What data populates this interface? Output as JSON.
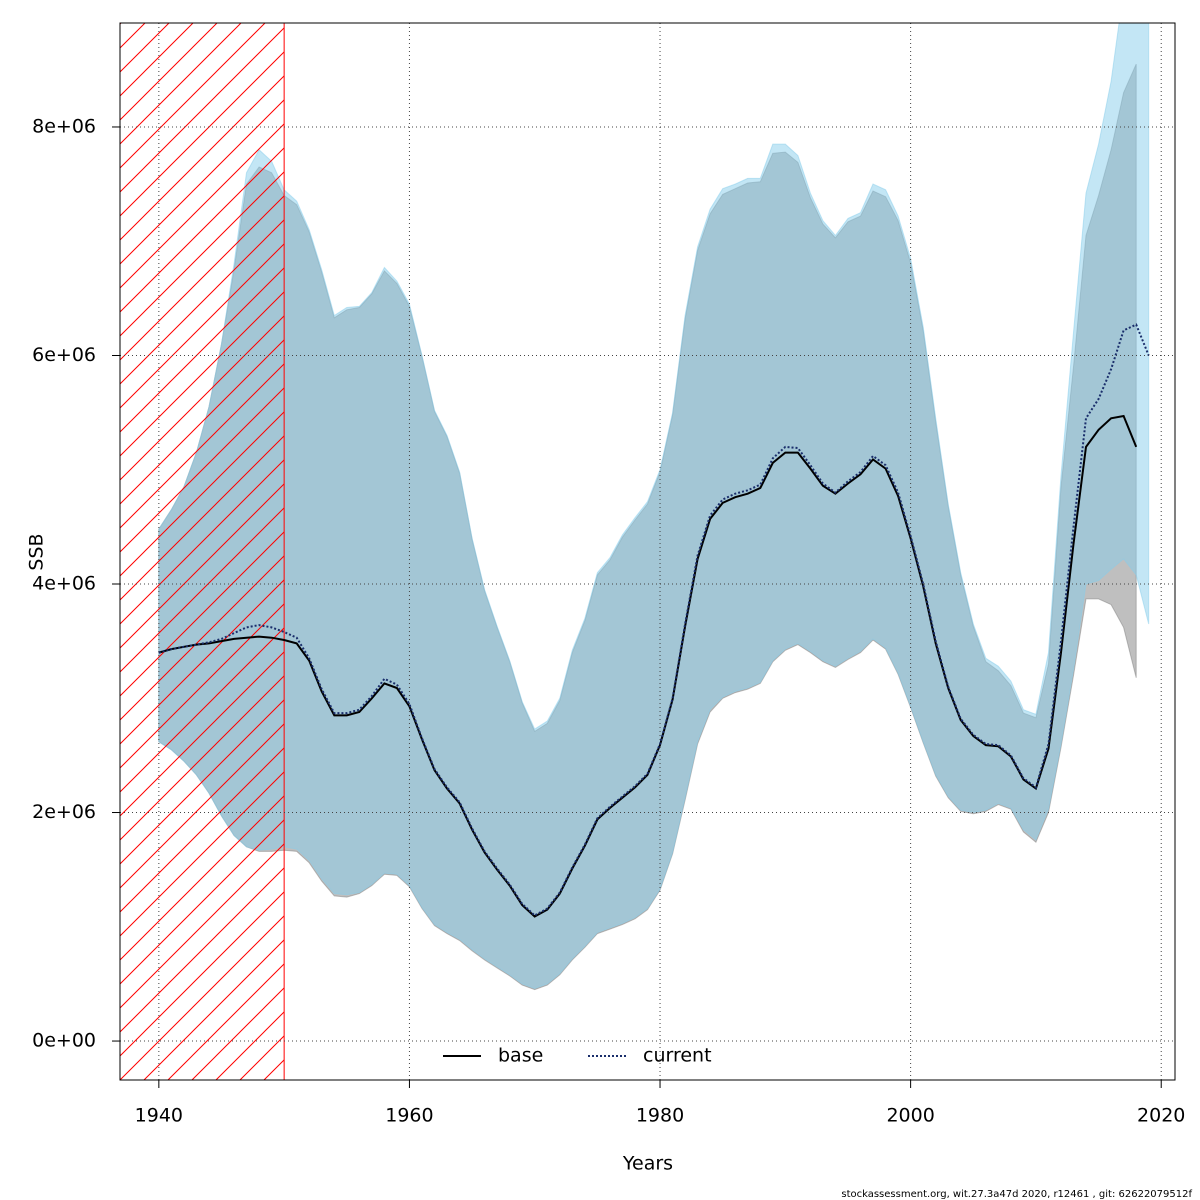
{
  "chart_data": {
    "type": "line",
    "xlabel": "Years",
    "ylabel": "SSB",
    "footer": "stockassessment.org, wit.27.3a47d   2020, r12461 , git: 62622079512f",
    "xlim": [
      1936.9,
      2021.1
    ],
    "ylim": [
      -341000,
      8910000
    ],
    "xticks": [
      1940,
      1960,
      1980,
      2000,
      2020
    ],
    "yticks": [
      {
        "value": 0,
        "label": "0e+00"
      },
      {
        "value": 2000000,
        "label": "2e+06"
      },
      {
        "value": 4000000,
        "label": "4e+06"
      },
      {
        "value": 6000000,
        "label": "6e+06"
      },
      {
        "value": 8000000,
        "label": "8e+06"
      }
    ],
    "grid": true,
    "legend": "bottom",
    "shaded_region": {
      "x": [
        1936.9,
        1950
      ],
      "color": "#ff0000"
    },
    "x": [
      1940,
      1941,
      1942,
      1943,
      1944,
      1945,
      1946,
      1947,
      1948,
      1949,
      1950,
      1951,
      1952,
      1953,
      1954,
      1955,
      1956,
      1957,
      1958,
      1959,
      1960,
      1961,
      1962,
      1963,
      1964,
      1965,
      1966,
      1967,
      1968,
      1969,
      1970,
      1971,
      1972,
      1973,
      1974,
      1975,
      1976,
      1977,
      1978,
      1979,
      1980,
      1981,
      1982,
      1983,
      1984,
      1985,
      1986,
      1987,
      1988,
      1989,
      1990,
      1991,
      1992,
      1993,
      1994,
      1995,
      1996,
      1997,
      1998,
      1999,
      2000,
      2001,
      2002,
      2003,
      2004,
      2005,
      2006,
      2007,
      2008,
      2009,
      2010,
      2011,
      2012,
      2013,
      2014,
      2015,
      2016,
      2017,
      2018,
      2019
    ],
    "series": [
      {
        "name": "base",
        "color": "#000000",
        "band_color": "#808080",
        "dash": "solid",
        "values": [
          3400000,
          3430000,
          3450000,
          3470000,
          3480000,
          3500000,
          3520000,
          3530000,
          3540000,
          3530000,
          3510000,
          3480000,
          3330000,
          3060000,
          2850000,
          2850000,
          2880000,
          3000000,
          3130000,
          3090000,
          2930000,
          2640000,
          2370000,
          2210000,
          2080000,
          1850000,
          1650000,
          1500000,
          1360000,
          1190000,
          1090000,
          1150000,
          1290000,
          1510000,
          1710000,
          1940000,
          2040000,
          2130000,
          2220000,
          2330000,
          2590000,
          2990000,
          3630000,
          4220000,
          4570000,
          4710000,
          4760000,
          4790000,
          4840000,
          5060000,
          5150000,
          5150000,
          5010000,
          4860000,
          4790000,
          4880000,
          4960000,
          5090000,
          5010000,
          4770000,
          4400000,
          3980000,
          3480000,
          3090000,
          2810000,
          2670000,
          2590000,
          2580000,
          2490000,
          2290000,
          2210000,
          2560000,
          3400000,
          4350000,
          5200000,
          5350000,
          5450000,
          5470000,
          5200000,
          null
        ],
        "upper": [
          4480000,
          4650000,
          4850000,
          5150000,
          5550000,
          6100000,
          6750000,
          7500000,
          7650000,
          7600000,
          7400000,
          7320000,
          7080000,
          6730000,
          6330000,
          6400000,
          6420000,
          6540000,
          6740000,
          6630000,
          6430000,
          5990000,
          5510000,
          5290000,
          4970000,
          4390000,
          3940000,
          3620000,
          3320000,
          2960000,
          2710000,
          2780000,
          2980000,
          3400000,
          3680000,
          4080000,
          4210000,
          4410000,
          4560000,
          4700000,
          4980000,
          5480000,
          6320000,
          6920000,
          7240000,
          7410000,
          7460000,
          7510000,
          7520000,
          7770000,
          7780000,
          7690000,
          7380000,
          7150000,
          7030000,
          7170000,
          7220000,
          7440000,
          7390000,
          7180000,
          6810000,
          6220000,
          5420000,
          4680000,
          4080000,
          3630000,
          3320000,
          3240000,
          3110000,
          2870000,
          2830000,
          3300000,
          4850000,
          5900000,
          7050000,
          7400000,
          7800000,
          8300000,
          8550000,
          null
        ],
        "lower": [
          2620000,
          2550000,
          2450000,
          2330000,
          2170000,
          1970000,
          1800000,
          1700000,
          1660000,
          1660000,
          1670000,
          1660000,
          1560000,
          1400000,
          1270000,
          1260000,
          1290000,
          1360000,
          1460000,
          1450000,
          1350000,
          1160000,
          1010000,
          940000,
          880000,
          790000,
          710000,
          640000,
          570000,
          490000,
          450000,
          490000,
          580000,
          710000,
          820000,
          940000,
          980000,
          1020000,
          1070000,
          1150000,
          1320000,
          1640000,
          2110000,
          2600000,
          2880000,
          3000000,
          3050000,
          3080000,
          3130000,
          3320000,
          3420000,
          3470000,
          3400000,
          3320000,
          3270000,
          3340000,
          3400000,
          3510000,
          3430000,
          3210000,
          2920000,
          2610000,
          2320000,
          2130000,
          2010000,
          1990000,
          2010000,
          2070000,
          2030000,
          1830000,
          1740000,
          2000000,
          2570000,
          3200000,
          3870000,
          3870000,
          3820000,
          3620000,
          3180000,
          null
        ]
      },
      {
        "name": "current",
        "color": "#1a2e6b",
        "band_color": "#87ceeb",
        "dash": "dotted",
        "values": [
          3400000,
          3430000,
          3450000,
          3470000,
          3490000,
          3520000,
          3570000,
          3620000,
          3640000,
          3620000,
          3580000,
          3530000,
          3350000,
          3080000,
          2870000,
          2870000,
          2900000,
          3020000,
          3170000,
          3120000,
          2950000,
          2650000,
          2380000,
          2220000,
          2090000,
          1860000,
          1660000,
          1510000,
          1370000,
          1200000,
          1100000,
          1160000,
          1300000,
          1520000,
          1720000,
          1950000,
          2050000,
          2140000,
          2230000,
          2340000,
          2600000,
          3000000,
          3650000,
          4250000,
          4600000,
          4740000,
          4790000,
          4820000,
          4870000,
          5100000,
          5200000,
          5190000,
          5040000,
          4880000,
          4800000,
          4900000,
          4980000,
          5120000,
          5040000,
          4800000,
          4420000,
          4000000,
          3500000,
          3100000,
          2820000,
          2680000,
          2600000,
          2590000,
          2500000,
          2300000,
          2220000,
          2600000,
          3500000,
          4500000,
          5450000,
          5620000,
          5880000,
          6220000,
          6270000,
          6000000
        ],
        "upper": [
          4480000,
          4650000,
          4850000,
          5150000,
          5550000,
          6100000,
          6800000,
          7600000,
          7800000,
          7700000,
          7450000,
          7350000,
          7100000,
          6750000,
          6350000,
          6420000,
          6430000,
          6550000,
          6770000,
          6650000,
          6450000,
          6000000,
          5520000,
          5300000,
          4980000,
          4400000,
          3950000,
          3630000,
          3330000,
          2970000,
          2730000,
          2800000,
          3000000,
          3420000,
          3700000,
          4100000,
          4230000,
          4430000,
          4580000,
          4720000,
          5000000,
          5500000,
          6350000,
          6950000,
          7280000,
          7460000,
          7500000,
          7550000,
          7550000,
          7850000,
          7850000,
          7750000,
          7420000,
          7180000,
          7050000,
          7200000,
          7250000,
          7500000,
          7450000,
          7220000,
          6850000,
          6250000,
          5450000,
          4700000,
          4100000,
          3650000,
          3350000,
          3280000,
          3150000,
          2900000,
          2860000,
          3400000,
          4950000,
          6200000,
          7420000,
          7850000,
          8400000,
          9200000,
          9700000,
          9800000
        ],
        "lower": [
          2620000,
          2550000,
          2450000,
          2330000,
          2170000,
          1970000,
          1800000,
          1700000,
          1670000,
          1680000,
          1700000,
          1680000,
          1580000,
          1420000,
          1290000,
          1280000,
          1300000,
          1370000,
          1470000,
          1460000,
          1360000,
          1170000,
          1020000,
          950000,
          890000,
          800000,
          720000,
          650000,
          580000,
          500000,
          460000,
          500000,
          590000,
          720000,
          830000,
          950000,
          990000,
          1030000,
          1080000,
          1160000,
          1330000,
          1650000,
          2130000,
          2620000,
          2900000,
          3010000,
          3060000,
          3090000,
          3140000,
          3330000,
          3430000,
          3480000,
          3410000,
          3330000,
          3280000,
          3350000,
          3410000,
          3520000,
          3440000,
          3220000,
          2930000,
          2620000,
          2330000,
          2140000,
          2020000,
          2000000,
          2020000,
          2080000,
          2040000,
          1850000,
          1760000,
          2030000,
          2600000,
          3250000,
          4000000,
          4030000,
          4130000,
          4220000,
          4080000,
          3650000
        ]
      }
    ]
  }
}
